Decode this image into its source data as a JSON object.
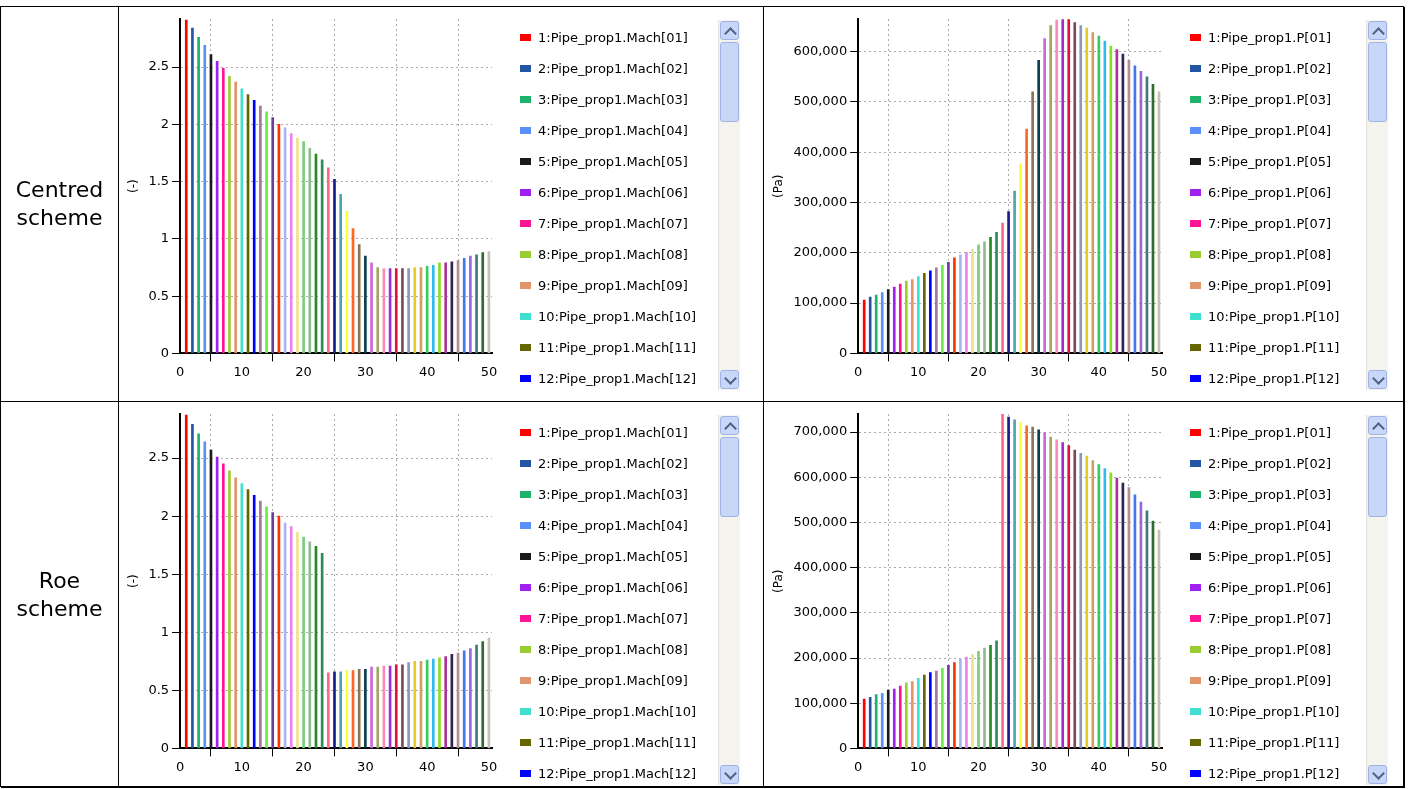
{
  "chart_data": [
    {
      "type": "other",
      "title": "Centred scheme"
    },
    {
      "type": "bar",
      "ylabel": "(-)",
      "legend": "right",
      "grid": true,
      "xlim": [
        0,
        50.5
      ],
      "xticks": [
        0,
        10,
        20,
        30,
        40,
        50
      ],
      "ylim": [
        0,
        2.92
      ],
      "yticks": [
        0,
        0.5,
        1,
        1.5,
        2,
        2.5
      ],
      "series": [
        {
          "name": "1:Pipe_prop1.Mach[01]",
          "color": "#ff0000",
          "x": [
            1
          ],
          "values": [
            2.91
          ]
        },
        {
          "name": "2:Pipe_prop1.Mach[02]",
          "color": "#2255a4",
          "x": [
            2
          ],
          "values": [
            2.84
          ]
        },
        {
          "name": "3:Pipe_prop1.Mach[03]",
          "color": "#1db36b",
          "x": [
            3
          ],
          "values": [
            2.76
          ]
        },
        {
          "name": "4:Pipe_prop1.Mach[04]",
          "color": "#5b8ff9",
          "x": [
            4
          ],
          "values": [
            2.69
          ]
        },
        {
          "name": "5:Pipe_prop1.Mach[05]",
          "color": "#1a1a1a",
          "x": [
            5
          ],
          "values": [
            2.61
          ]
        },
        {
          "name": "6:Pipe_prop1.Mach[06]",
          "color": "#a020f0",
          "x": [
            6
          ],
          "values": [
            2.55
          ]
        },
        {
          "name": "7:Pipe_prop1.Mach[07]",
          "color": "#ff1493",
          "x": [
            7
          ],
          "values": [
            2.49
          ]
        },
        {
          "name": "8:Pipe_prop1.Mach[08]",
          "color": "#9acd32",
          "x": [
            8
          ],
          "values": [
            2.42
          ]
        },
        {
          "name": "9:Pipe_prop1.Mach[09]",
          "color": "#e0956a",
          "x": [
            9
          ],
          "values": [
            2.37
          ]
        },
        {
          "name": "10:Pipe_prop1.Mach[10]",
          "color": "#40e0d0",
          "x": [
            10
          ],
          "values": [
            2.31
          ]
        },
        {
          "name": "11:Pipe_prop1.Mach[11]",
          "color": "#666600",
          "x": [
            11
          ],
          "values": [
            2.26
          ]
        },
        {
          "name": "12:Pipe_prop1.Mach[12]",
          "color": "#0000ff",
          "x": [
            12
          ],
          "values": [
            2.21
          ]
        },
        {
          "x": [
            13,
            14,
            15,
            16,
            17,
            18,
            19,
            20,
            21,
            22,
            23,
            24,
            25,
            26,
            27,
            28,
            29,
            30,
            31,
            32,
            33,
            34,
            35,
            36,
            37,
            38,
            39,
            40,
            41,
            42,
            43,
            44,
            45,
            46,
            47,
            48,
            49,
            50
          ],
          "values": [
            2.16,
            2.11,
            2.06,
            2.0,
            1.97,
            1.92,
            1.88,
            1.85,
            1.79,
            1.74,
            1.69,
            1.62,
            1.52,
            1.39,
            1.24,
            1.09,
            0.95,
            0.85,
            0.79,
            0.75,
            0.74,
            0.74,
            0.74,
            0.74,
            0.74,
            0.75,
            0.75,
            0.76,
            0.77,
            0.79,
            0.79,
            0.8,
            0.81,
            0.83,
            0.85,
            0.86,
            0.88,
            0.89
          ],
          "colors": [
            "#a0789a",
            "#66ee44",
            "#6a3d9a",
            "#ff3300",
            "#aab4f0",
            "#ee82ee",
            "#e6e68a",
            "#7ccd7c",
            "#8fbc8f",
            "#228b22",
            "#2e8b57",
            "#ff6688",
            "#1a1a8a",
            "#4aa6b0",
            "#ffff33",
            "#ff6622",
            "#8b7355",
            "#0b3d4d",
            "#cc66dd",
            "#a0a860",
            "#ff88bb",
            "#9932cc",
            "#dc143c",
            "#7a4a5a",
            "#8899bb",
            "#e6c830",
            "#d2a060",
            "#33cc66",
            "#33bbee",
            "#88dd22",
            "#aa3399",
            "#332255",
            "#b09090",
            "#4477ee",
            "#9966dd",
            "#3d7a7a",
            "#2e6b2e",
            "#c8c0b0"
          ]
        }
      ]
    },
    {
      "type": "bar",
      "ylabel": "(Pa)",
      "legend": "right",
      "grid": true,
      "xlim": [
        0,
        50.5
      ],
      "xticks": [
        0,
        10,
        20,
        30,
        40,
        50
      ],
      "ylim": [
        0,
        665000
      ],
      "yticks": [
        0,
        {
          "value": 100000,
          "label": "100,000"
        },
        {
          "value": 200000,
          "label": "200,000"
        },
        {
          "value": 300000,
          "label": "300,000"
        },
        {
          "value": 400000,
          "label": "400,000"
        },
        {
          "value": 500000,
          "label": "500,000"
        },
        {
          "value": 600000,
          "label": "600,000"
        }
      ],
      "series": [
        {
          "name": "1:Pipe_prop1.P[01]",
          "color": "#ff0000",
          "x": [
            1
          ],
          "values": [
            106000
          ]
        },
        {
          "name": "2:Pipe_prop1.P[02]",
          "color": "#2255a4",
          "x": [
            2
          ],
          "values": [
            112000
          ]
        },
        {
          "name": "3:Pipe_prop1.P[03]",
          "color": "#1db36b",
          "x": [
            3
          ],
          "values": [
            116000
          ]
        },
        {
          "name": "4:Pipe_prop1.P[04]",
          "color": "#5b8ff9",
          "x": [
            4
          ],
          "values": [
            121000
          ]
        },
        {
          "name": "5:Pipe_prop1.P[05]",
          "color": "#1a1a1a",
          "x": [
            5
          ],
          "values": [
            127000
          ]
        },
        {
          "name": "6:Pipe_prop1.P[06]",
          "color": "#a020f0",
          "x": [
            6
          ],
          "values": [
            132000
          ]
        },
        {
          "name": "7:Pipe_prop1.P[07]",
          "color": "#ff1493",
          "x": [
            7
          ],
          "values": [
            138000
          ]
        },
        {
          "name": "8:Pipe_prop1.P[08]",
          "color": "#9acd32",
          "x": [
            8
          ],
          "values": [
            144000
          ]
        },
        {
          "name": "9:Pipe_prop1.P[09]",
          "color": "#e0956a",
          "x": [
            9
          ],
          "values": [
            147000
          ]
        },
        {
          "name": "10:Pipe_prop1.P[10]",
          "color": "#40e0d0",
          "x": [
            10
          ],
          "values": [
            153000
          ]
        },
        {
          "name": "11:Pipe_prop1.P[11]",
          "color": "#666600",
          "x": [
            11
          ],
          "values": [
            159000
          ]
        },
        {
          "name": "12:Pipe_prop1.P[12]",
          "color": "#0000ff",
          "x": [
            12
          ],
          "values": [
            164000
          ]
        },
        {
          "x": [
            13,
            14,
            15,
            16,
            17,
            18,
            19,
            20,
            21,
            22,
            23,
            24,
            25,
            26,
            27,
            28,
            29,
            30,
            31,
            32,
            33,
            34,
            35,
            36,
            37,
            38,
            39,
            40,
            41,
            42,
            43,
            44,
            45,
            46,
            47,
            48,
            49,
            50
          ],
          "values": [
            170000,
            175000,
            181000,
            190000,
            196000,
            201000,
            207000,
            216000,
            222000,
            231000,
            241000,
            259000,
            282000,
            323000,
            377000,
            446000,
            520000,
            583000,
            626000,
            652000,
            663000,
            664000,
            664000,
            658000,
            652000,
            647000,
            638000,
            631000,
            621000,
            611000,
            604000,
            595000,
            583000,
            572000,
            561000,
            550000,
            535000,
            520000
          ],
          "colors": [
            "#a0789a",
            "#66ee44",
            "#6a3d9a",
            "#ff3300",
            "#aab4f0",
            "#ee82ee",
            "#e6e68a",
            "#7ccd7c",
            "#8fbc8f",
            "#228b22",
            "#2e8b57",
            "#ff6688",
            "#1a1a8a",
            "#4aa6b0",
            "#ffff33",
            "#ff6622",
            "#8b7355",
            "#0b3d4d",
            "#cc66dd",
            "#a0a860",
            "#ff88bb",
            "#9932cc",
            "#dc143c",
            "#7a4a5a",
            "#8899bb",
            "#e6c830",
            "#d2a060",
            "#33cc66",
            "#33bbee",
            "#88dd22",
            "#aa3399",
            "#332255",
            "#b09090",
            "#4477ee",
            "#9966dd",
            "#3d7a7a",
            "#2e6b2e",
            "#c8c0b0"
          ]
        }
      ]
    },
    {
      "type": "other",
      "title": "Roe scheme"
    },
    {
      "type": "bar",
      "ylabel": "(-)",
      "legend": "right",
      "grid": true,
      "xlim": [
        0,
        50.5
      ],
      "xticks": [
        0,
        10,
        20,
        30,
        40,
        50
      ],
      "ylim": [
        0,
        2.88
      ],
      "yticks": [
        0,
        0.5,
        1,
        1.5,
        2,
        2.5
      ],
      "series": [
        {
          "name": "1:Pipe_prop1.Mach[01]",
          "color": "#ff0000",
          "x": [
            1
          ],
          "values": [
            2.87
          ]
        },
        {
          "name": "2:Pipe_prop1.Mach[02]",
          "color": "#2255a4",
          "x": [
            2
          ],
          "values": [
            2.79
          ]
        },
        {
          "name": "3:Pipe_prop1.Mach[03]",
          "color": "#1db36b",
          "x": [
            3
          ],
          "values": [
            2.71
          ]
        },
        {
          "name": "4:Pipe_prop1.Mach[04]",
          "color": "#5b8ff9",
          "x": [
            4
          ],
          "values": [
            2.64
          ]
        },
        {
          "name": "5:Pipe_prop1.Mach[05]",
          "color": "#1a1a1a",
          "x": [
            5
          ],
          "values": [
            2.57
          ]
        },
        {
          "name": "6:Pipe_prop1.Mach[06]",
          "color": "#a020f0",
          "x": [
            6
          ],
          "values": [
            2.51
          ]
        },
        {
          "name": "7:Pipe_prop1.Mach[07]",
          "color": "#ff1493",
          "x": [
            7
          ],
          "values": [
            2.45
          ]
        },
        {
          "name": "8:Pipe_prop1.Mach[08]",
          "color": "#9acd32",
          "x": [
            8
          ],
          "values": [
            2.39
          ]
        },
        {
          "name": "9:Pipe_prop1.Mach[09]",
          "color": "#e0956a",
          "x": [
            9
          ],
          "values": [
            2.33
          ]
        },
        {
          "name": "10:Pipe_prop1.Mach[10]",
          "color": "#40e0d0",
          "x": [
            10
          ],
          "values": [
            2.28
          ]
        },
        {
          "name": "11:Pipe_prop1.Mach[11]",
          "color": "#666600",
          "x": [
            11
          ],
          "values": [
            2.23
          ]
        },
        {
          "name": "12:Pipe_prop1.Mach[12]",
          "color": "#0000ff",
          "x": [
            12
          ],
          "values": [
            2.18
          ]
        },
        {
          "x": [
            13,
            14,
            15,
            16,
            17,
            18,
            19,
            20,
            21,
            22,
            23,
            24,
            25,
            26,
            27,
            28,
            29,
            30,
            31,
            32,
            33,
            34,
            35,
            36,
            37,
            38,
            39,
            40,
            41,
            42,
            43,
            44,
            45,
            46,
            47,
            48,
            49,
            50
          ],
          "values": [
            2.13,
            2.08,
            2.03,
            2.0,
            1.94,
            1.91,
            1.86,
            1.82,
            1.78,
            1.74,
            1.68,
            0.65,
            0.66,
            0.66,
            0.67,
            0.67,
            0.68,
            0.68,
            0.7,
            0.7,
            0.71,
            0.71,
            0.72,
            0.72,
            0.74,
            0.75,
            0.75,
            0.76,
            0.77,
            0.78,
            0.79,
            0.81,
            0.82,
            0.84,
            0.86,
            0.89,
            0.92,
            0.95
          ],
          "colors": [
            "#a0789a",
            "#66ee44",
            "#6a3d9a",
            "#ff3300",
            "#aab4f0",
            "#ee82ee",
            "#e6e68a",
            "#7ccd7c",
            "#8fbc8f",
            "#228b22",
            "#2e8b57",
            "#ff6688",
            "#1a1a8a",
            "#4aa6b0",
            "#ffff33",
            "#ff6622",
            "#8b7355",
            "#0b3d4d",
            "#cc66dd",
            "#a0a860",
            "#ff88bb",
            "#9932cc",
            "#dc143c",
            "#7a4a5a",
            "#8899bb",
            "#e6c830",
            "#d2a060",
            "#33cc66",
            "#33bbee",
            "#88dd22",
            "#aa3399",
            "#332255",
            "#b09090",
            "#4477ee",
            "#9966dd",
            "#3d7a7a",
            "#2e6b2e",
            "#c8c0b0"
          ]
        }
      ]
    },
    {
      "type": "bar",
      "ylabel": "(Pa)",
      "legend": "right",
      "grid": true,
      "xlim": [
        0,
        50.5
      ],
      "xticks": [
        0,
        10,
        20,
        30,
        40,
        50
      ],
      "ylim": [
        0,
        740000
      ],
      "yticks": [
        0,
        {
          "value": 100000,
          "label": "100,000"
        },
        {
          "value": 200000,
          "label": "200,000"
        },
        {
          "value": 300000,
          "label": "300,000"
        },
        {
          "value": 400000,
          "label": "400,000"
        },
        {
          "value": 500000,
          "label": "500,000"
        },
        {
          "value": 600000,
          "label": "600,000"
        },
        {
          "value": 700000,
          "label": "700,000"
        }
      ],
      "series": [
        {
          "name": "1:Pipe_prop1.P[01]",
          "color": "#ff0000",
          "x": [
            1
          ],
          "values": [
            109000
          ]
        },
        {
          "name": "2:Pipe_prop1.P[02]",
          "color": "#2255a4",
          "x": [
            2
          ],
          "values": [
            113000
          ]
        },
        {
          "name": "3:Pipe_prop1.P[03]",
          "color": "#1db36b",
          "x": [
            3
          ],
          "values": [
            119000
          ]
        },
        {
          "name": "4:Pipe_prop1.P[04]",
          "color": "#5b8ff9",
          "x": [
            4
          ],
          "values": [
            122000
          ]
        },
        {
          "name": "5:Pipe_prop1.P[05]",
          "color": "#1a1a1a",
          "x": [
            5
          ],
          "values": [
            129000
          ]
        },
        {
          "name": "6:Pipe_prop1.P[06]",
          "color": "#a020f0",
          "x": [
            6
          ],
          "values": [
            131000
          ]
        },
        {
          "name": "7:Pipe_prop1.P[07]",
          "color": "#ff1493",
          "x": [
            7
          ],
          "values": [
            138000
          ]
        },
        {
          "name": "8:Pipe_prop1.P[08]",
          "color": "#9acd32",
          "x": [
            8
          ],
          "values": [
            145000
          ]
        },
        {
          "name": "9:Pipe_prop1.P[09]",
          "color": "#e0956a",
          "x": [
            9
          ],
          "values": [
            148000
          ]
        },
        {
          "name": "10:Pipe_prop1.P[10]",
          "color": "#40e0d0",
          "x": [
            10
          ],
          "values": [
            155000
          ]
        },
        {
          "name": "11:Pipe_prop1.P[11]",
          "color": "#666600",
          "x": [
            11
          ],
          "values": [
            162000
          ]
        },
        {
          "name": "12:Pipe_prop1.P[12]",
          "color": "#0000ff",
          "x": [
            12
          ],
          "values": [
            168000
          ]
        },
        {
          "x": [
            13,
            14,
            15,
            16,
            17,
            18,
            19,
            20,
            21,
            22,
            23,
            24,
            25,
            26,
            27,
            28,
            29,
            30,
            31,
            32,
            33,
            34,
            35,
            36,
            37,
            38,
            39,
            40,
            41,
            42,
            43,
            44,
            45,
            46,
            47,
            48,
            49,
            50
          ],
          "values": [
            171000,
            177000,
            184000,
            190000,
            197000,
            202000,
            208000,
            215000,
            222000,
            228000,
            238000,
            740000,
            733000,
            727000,
            721000,
            714000,
            711000,
            705000,
            699000,
            689000,
            683000,
            677000,
            670000,
            660000,
            653000,
            647000,
            637000,
            628000,
            619000,
            610000,
            598000,
            587000,
            577000,
            561000,
            545000,
            526000,
            503000,
            483000
          ],
          "colors": [
            "#a0789a",
            "#66ee44",
            "#6a3d9a",
            "#ff3300",
            "#aab4f0",
            "#ee82ee",
            "#e6e68a",
            "#7ccd7c",
            "#8fbc8f",
            "#228b22",
            "#2e8b57",
            "#ff6688",
            "#1a1a8a",
            "#4aa6b0",
            "#ffff33",
            "#ff6622",
            "#8b7355",
            "#0b3d4d",
            "#cc66dd",
            "#a0a860",
            "#ff88bb",
            "#9932cc",
            "#dc143c",
            "#7a4a5a",
            "#8899bb",
            "#e6c830",
            "#d2a060",
            "#33cc66",
            "#33bbee",
            "#88dd22",
            "#aa3399",
            "#332255",
            "#b09090",
            "#4477ee",
            "#9966dd",
            "#3d7a7a",
            "#2e6b2e",
            "#c8c0b0"
          ]
        }
      ]
    }
  ]
}
